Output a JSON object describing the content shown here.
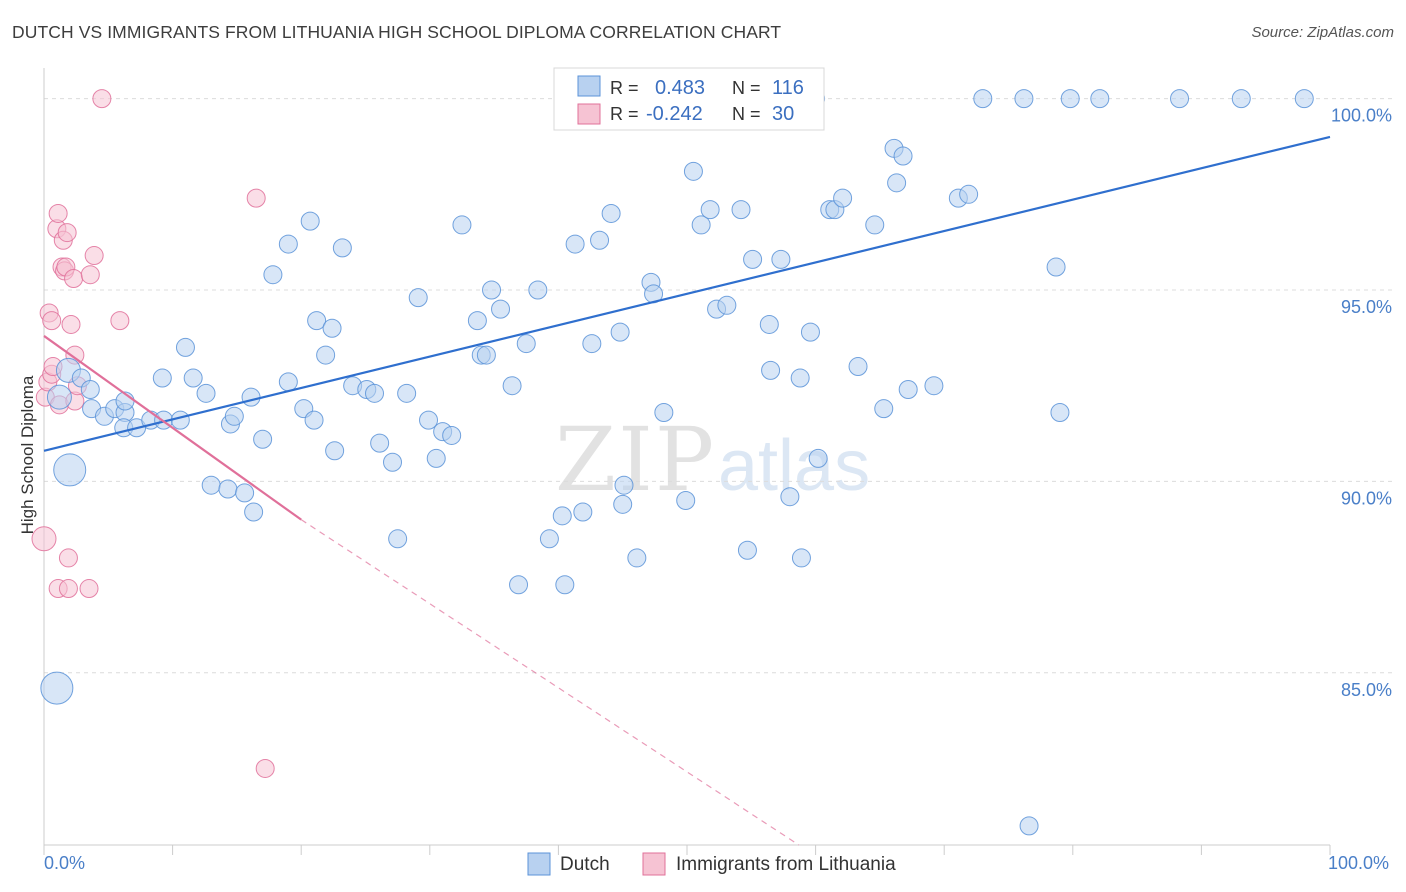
{
  "title": "DUTCH VS IMMIGRANTS FROM LITHUANIA HIGH SCHOOL DIPLOMA CORRELATION CHART",
  "source": "Source: ZipAtlas.com",
  "watermark": {
    "zip": "ZIP",
    "atlas": "atlas"
  },
  "colors": {
    "dutch": "#5b93d8",
    "dutch_fill": "#b8d1f0",
    "lith": "#e0709a",
    "lith_fill": "#f6c3d3",
    "tick": "#4a7fc8"
  },
  "legend_top": [
    {
      "r_label": "R =",
      "r_value": "0.483",
      "n_label": "N =",
      "n_value": "116"
    },
    {
      "r_label": "R =",
      "r_value": "-0.242",
      "n_label": "N =",
      "n_value": "30"
    }
  ],
  "chart_data": {
    "type": "scatter",
    "title": "DUTCH VS IMMIGRANTS FROM LITHUANIA HIGH SCHOOL DIPLOMA CORRELATION CHART",
    "xlabel": "",
    "ylabel": "High School Diploma",
    "xlim": [
      0,
      100
    ],
    "ylim": [
      80.5,
      100.8
    ],
    "x_tick_labels": [
      "0.0%",
      "100.0%"
    ],
    "y_ticks": [
      {
        "value": 85,
        "label": "85.0%"
      },
      {
        "value": 90,
        "label": "90.0%"
      },
      {
        "value": 95,
        "label": "95.0%"
      },
      {
        "value": 100,
        "label": "100.0%"
      }
    ],
    "grid": true,
    "legend_position": "bottom",
    "series": [
      {
        "name": "Dutch",
        "trend": {
          "x": [
            0,
            100
          ],
          "y": [
            90.8,
            99.0
          ]
        },
        "points": [
          [
            2.0,
            90.3,
            "l"
          ],
          [
            1.0,
            84.6,
            "l"
          ],
          [
            1.2,
            92.2,
            "m"
          ],
          [
            1.9,
            92.9,
            "m"
          ],
          [
            2.9,
            92.7
          ],
          [
            3.6,
            92.4
          ],
          [
            3.7,
            91.9
          ],
          [
            4.7,
            91.7
          ],
          [
            5.5,
            91.9
          ],
          [
            6.3,
            91.8
          ],
          [
            6.3,
            92.1
          ],
          [
            6.2,
            91.4
          ],
          [
            7.2,
            91.4
          ],
          [
            8.3,
            91.6
          ],
          [
            9.2,
            92.7
          ],
          [
            9.3,
            91.6
          ],
          [
            10.6,
            91.6
          ],
          [
            11.0,
            93.5
          ],
          [
            11.6,
            92.7
          ],
          [
            12.6,
            92.3
          ],
          [
            13.0,
            89.9
          ],
          [
            14.3,
            89.8
          ],
          [
            14.5,
            91.5
          ],
          [
            14.8,
            91.7
          ],
          [
            15.6,
            89.7
          ],
          [
            16.1,
            92.2
          ],
          [
            16.3,
            89.2
          ],
          [
            17.0,
            91.1
          ],
          [
            17.8,
            95.4
          ],
          [
            19.0,
            92.6
          ],
          [
            19.0,
            96.2
          ],
          [
            20.2,
            91.9
          ],
          [
            20.7,
            96.8
          ],
          [
            21.0,
            91.6
          ],
          [
            21.2,
            94.2
          ],
          [
            21.9,
            93.3
          ],
          [
            22.4,
            94.0
          ],
          [
            22.6,
            90.8
          ],
          [
            23.2,
            96.1
          ],
          [
            24.0,
            92.5
          ],
          [
            25.1,
            92.4
          ],
          [
            25.7,
            92.3
          ],
          [
            26.1,
            91.0
          ],
          [
            27.1,
            90.5
          ],
          [
            27.5,
            88.5
          ],
          [
            28.2,
            92.3
          ],
          [
            29.1,
            94.8
          ],
          [
            29.9,
            91.6
          ],
          [
            30.5,
            90.6
          ],
          [
            31.0,
            91.3
          ],
          [
            31.7,
            91.2
          ],
          [
            32.5,
            96.7
          ],
          [
            33.7,
            94.2
          ],
          [
            34.0,
            93.3
          ],
          [
            34.4,
            93.3
          ],
          [
            34.8,
            95.0
          ],
          [
            35.5,
            94.5
          ],
          [
            36.4,
            92.5
          ],
          [
            36.9,
            87.3
          ],
          [
            37.5,
            93.6
          ],
          [
            38.4,
            95.0
          ],
          [
            39.3,
            88.5
          ],
          [
            40.3,
            89.1
          ],
          [
            40.5,
            87.3
          ],
          [
            41.3,
            96.2
          ],
          [
            41.9,
            89.2
          ],
          [
            42.6,
            93.6
          ],
          [
            43.2,
            96.3
          ],
          [
            44.1,
            97.0
          ],
          [
            44.8,
            93.9
          ],
          [
            45.0,
            89.4
          ],
          [
            45.1,
            89.9
          ],
          [
            46.1,
            88.0
          ],
          [
            47.2,
            95.2
          ],
          [
            47.4,
            94.9
          ],
          [
            48.2,
            91.8
          ],
          [
            48.5,
            100.0
          ],
          [
            49.9,
            89.5
          ],
          [
            50.5,
            98.1
          ],
          [
            51.1,
            96.7
          ],
          [
            51.8,
            97.1
          ],
          [
            52.3,
            94.5
          ],
          [
            53.1,
            94.6
          ],
          [
            54.2,
            97.1
          ],
          [
            54.7,
            88.2
          ],
          [
            55.1,
            95.8
          ],
          [
            56.4,
            94.1
          ],
          [
            56.5,
            92.9
          ],
          [
            57.3,
            95.8
          ],
          [
            58.0,
            89.6
          ],
          [
            58.8,
            92.7
          ],
          [
            58.9,
            88.0
          ],
          [
            59.6,
            93.9
          ],
          [
            60.0,
            100.0
          ],
          [
            60.2,
            90.6
          ],
          [
            61.1,
            97.1
          ],
          [
            61.5,
            97.1
          ],
          [
            62.1,
            97.4
          ],
          [
            63.3,
            93.0
          ],
          [
            64.6,
            96.7
          ],
          [
            65.3,
            91.9
          ],
          [
            66.1,
            98.7
          ],
          [
            66.3,
            97.8
          ],
          [
            66.8,
            98.5
          ],
          [
            67.2,
            92.4
          ],
          [
            69.2,
            92.5
          ],
          [
            71.1,
            97.4
          ],
          [
            71.9,
            97.5
          ],
          [
            73.0,
            100.0
          ],
          [
            76.2,
            100.0
          ],
          [
            76.6,
            81.0
          ],
          [
            78.7,
            95.6
          ],
          [
            79.0,
            91.8
          ],
          [
            79.8,
            100.0
          ],
          [
            82.1,
            100.0
          ],
          [
            88.3,
            100.0
          ],
          [
            93.1,
            100.0
          ],
          [
            98.0,
            100.0
          ]
        ]
      },
      {
        "name": "Immigrants from Lithuania",
        "trend": {
          "x": [
            0,
            20
          ],
          "y": [
            93.8,
            89.0
          ],
          "dashed_to": [
            58.7,
            80.5
          ]
        },
        "points": [
          [
            0.0,
            88.5,
            "m"
          ],
          [
            0.1,
            92.2
          ],
          [
            0.3,
            92.6
          ],
          [
            0.4,
            94.4
          ],
          [
            0.6,
            92.8
          ],
          [
            0.6,
            94.2
          ],
          [
            0.7,
            93.0
          ],
          [
            1.0,
            96.6
          ],
          [
            1.1,
            97.0
          ],
          [
            1.1,
            87.2
          ],
          [
            1.2,
            92.0
          ],
          [
            1.4,
            95.6
          ],
          [
            1.5,
            96.3
          ],
          [
            1.6,
            95.5
          ],
          [
            1.7,
            95.6
          ],
          [
            1.8,
            96.5
          ],
          [
            1.9,
            88.0
          ],
          [
            1.9,
            87.2
          ],
          [
            2.1,
            94.1
          ],
          [
            2.3,
            95.3
          ],
          [
            2.4,
            92.1
          ],
          [
            2.4,
            93.3
          ],
          [
            3.5,
            87.2
          ],
          [
            3.6,
            95.4
          ],
          [
            3.9,
            95.9
          ],
          [
            4.5,
            100.0
          ],
          [
            5.9,
            94.2
          ],
          [
            16.5,
            97.4
          ],
          [
            17.2,
            82.5
          ],
          [
            2.6,
            92.5
          ]
        ]
      }
    ]
  }
}
